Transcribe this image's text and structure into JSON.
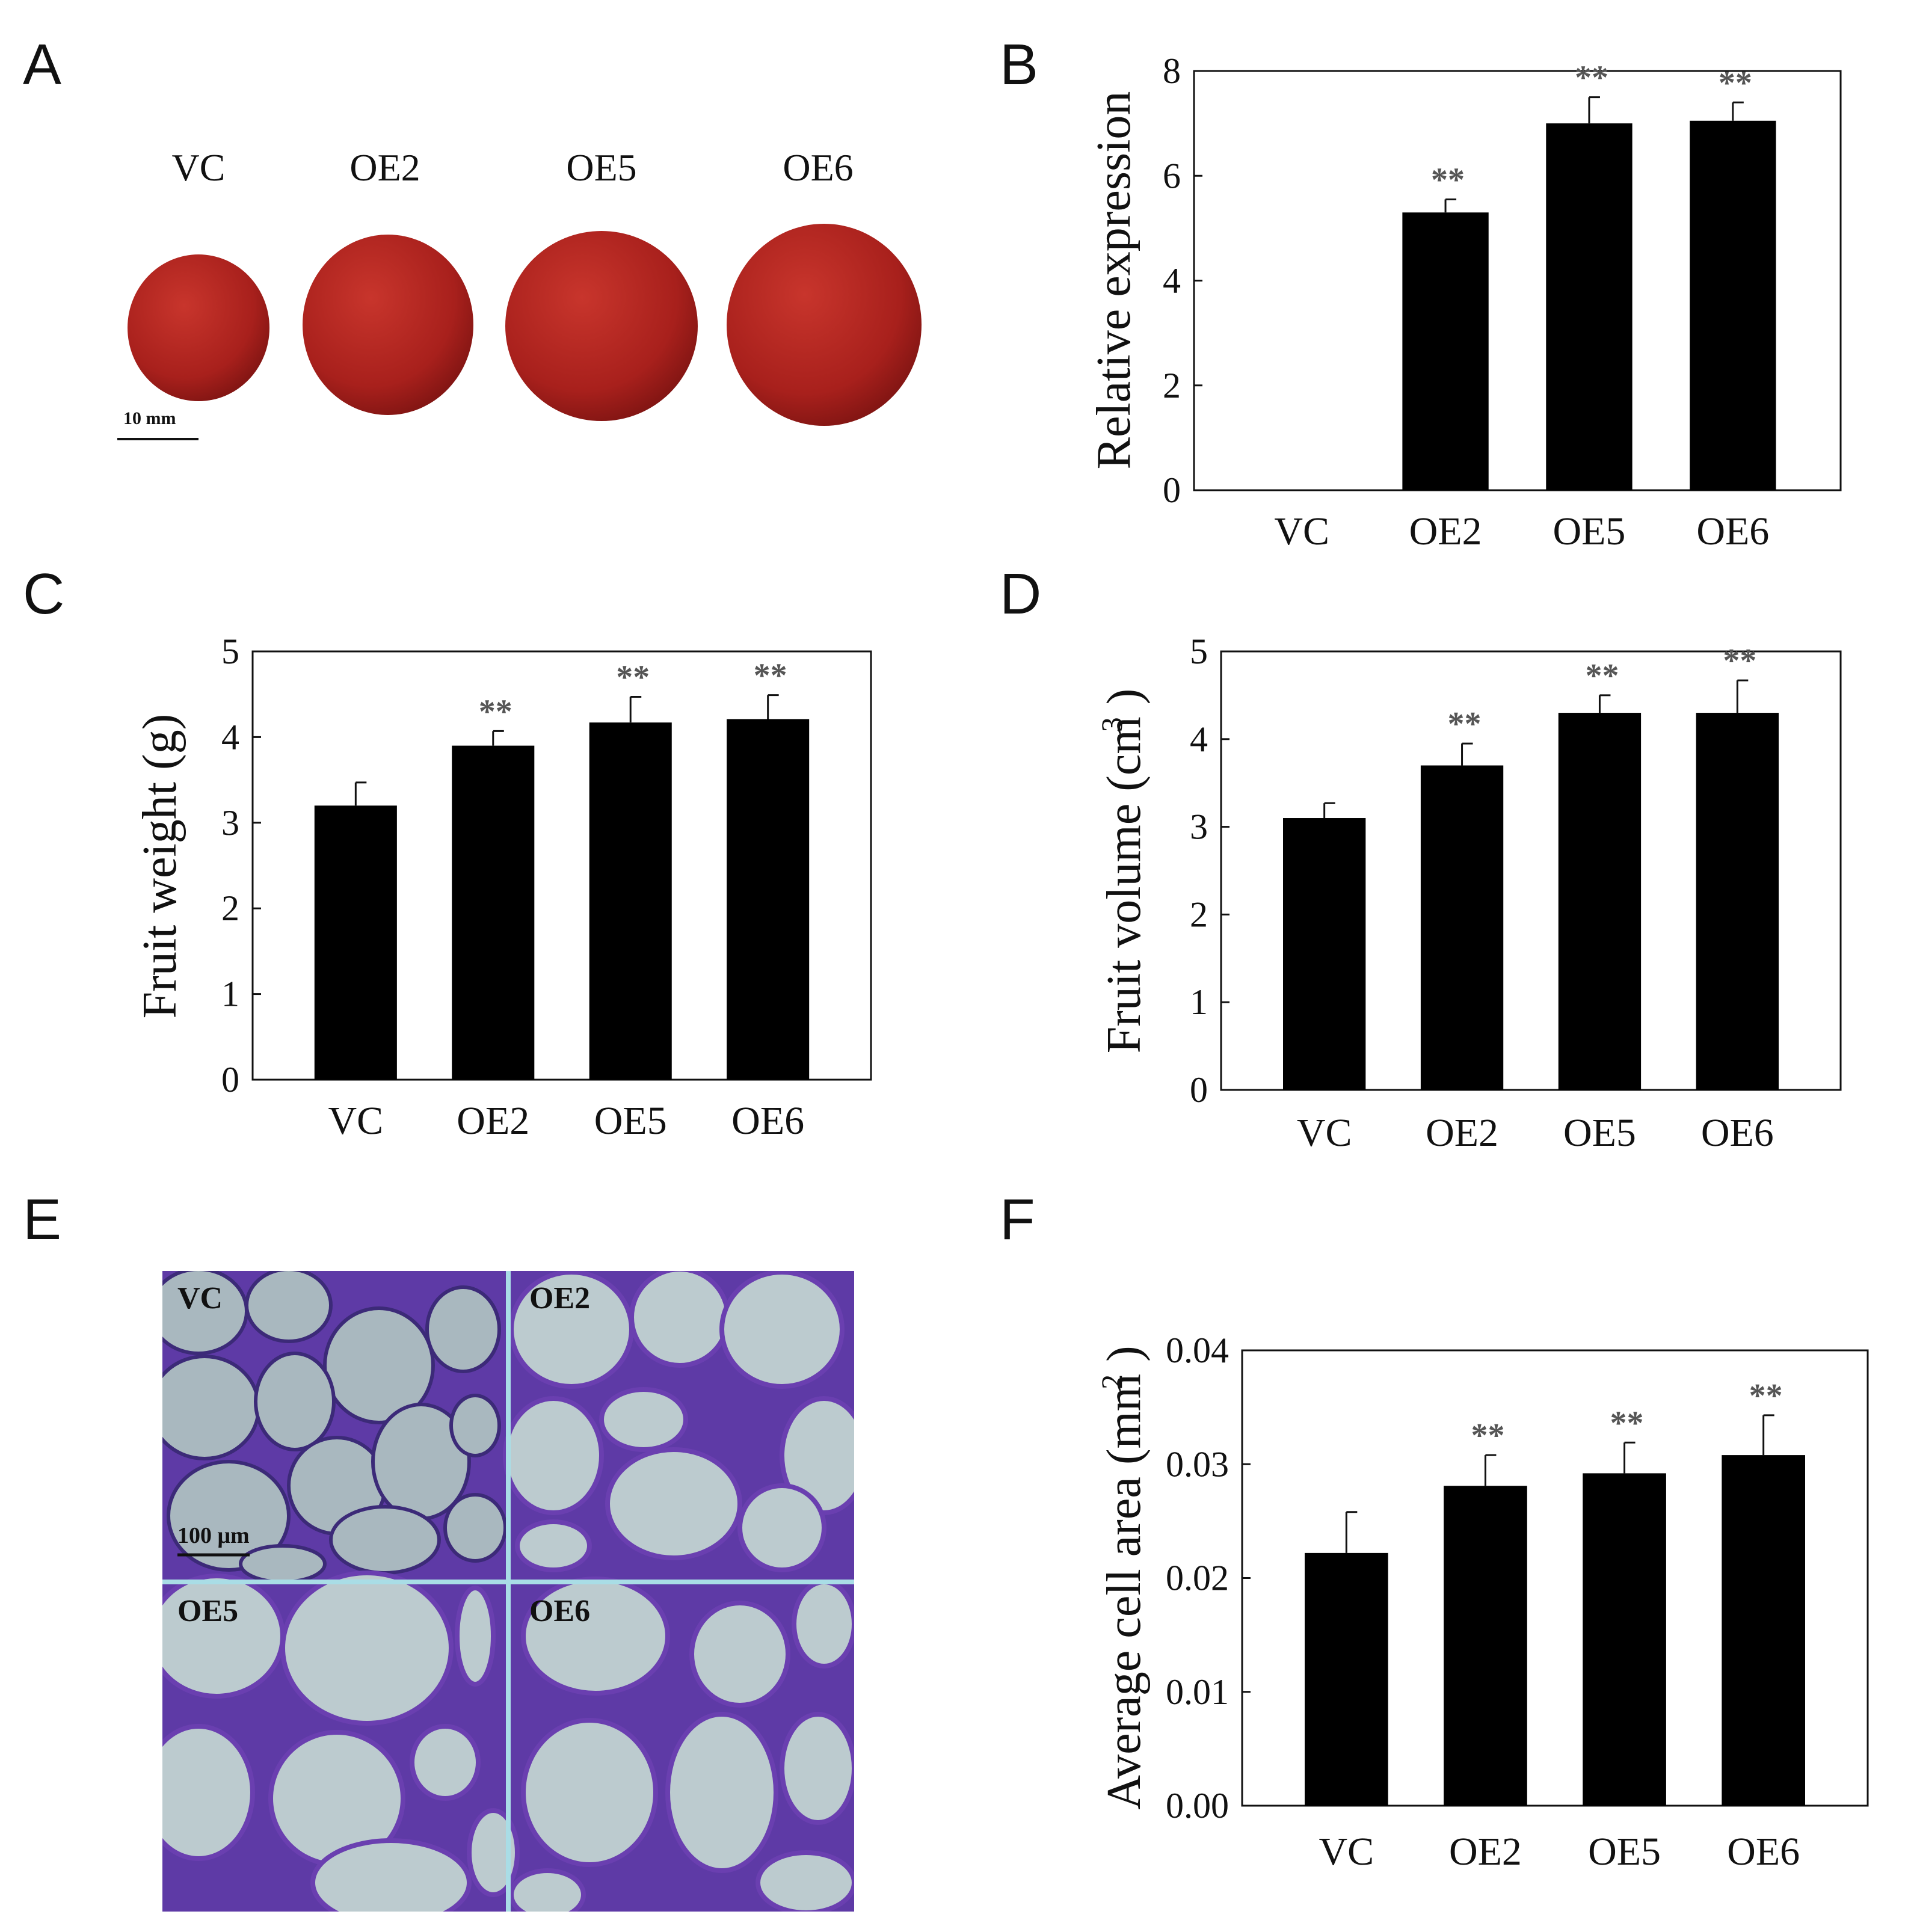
{
  "panel_letters": {
    "A": "A",
    "B": "B",
    "C": "C",
    "D": "D",
    "E": "E",
    "F": "F"
  },
  "fruit_photo": {
    "labels": [
      "VC",
      "OE2",
      "OE5",
      "OE6"
    ],
    "scale_bar": "10 mm",
    "fruit_color": "#a8201c"
  },
  "micrograph": {
    "labels": [
      "VC",
      "OE2",
      "OE5",
      "OE6"
    ],
    "scale_bar": "100 μm",
    "cell_color": "#b9c8cc",
    "wall_color": "#6a3fb0"
  },
  "chart_data": [
    {
      "panel": "B",
      "type": "bar",
      "categories": [
        "VC",
        "OE2",
        "OE5",
        "OE6"
      ],
      "values": [
        0,
        5.3,
        7.0,
        7.05
      ],
      "errors": [
        0,
        0.25,
        0.5,
        0.35
      ],
      "significance": [
        "",
        "**",
        "**",
        "**"
      ],
      "ylabel": "Relative expression",
      "ylabel_sup": "",
      "ylim": [
        0,
        8
      ],
      "yticks": [
        "0",
        "2",
        "4",
        "6",
        "8"
      ]
    },
    {
      "panel": "C",
      "type": "bar",
      "categories": [
        "VC",
        "OE2",
        "OE5",
        "OE6"
      ],
      "values": [
        3.2,
        3.9,
        4.17,
        4.21
      ],
      "errors": [
        0.27,
        0.17,
        0.3,
        0.28
      ],
      "significance": [
        "",
        "**",
        "**",
        "**"
      ],
      "ylabel": "Fruit weight (g)",
      "ylabel_sup": "",
      "ylim": [
        0,
        5
      ],
      "yticks": [
        "0",
        "1",
        "2",
        "3",
        "4",
        "5"
      ]
    },
    {
      "panel": "D",
      "type": "bar",
      "categories": [
        "VC",
        "OE2",
        "OE5",
        "OE6"
      ],
      "values": [
        3.1,
        3.7,
        4.3,
        4.3
      ],
      "errors": [
        0.17,
        0.25,
        0.2,
        0.37
      ],
      "significance": [
        "",
        "**",
        "**",
        "**"
      ],
      "ylabel": "Fruit volume (cm )",
      "ylabel_sup": "3",
      "ylim": [
        0,
        5
      ],
      "yticks": [
        "0",
        "1",
        "2",
        "3",
        "4",
        "5"
      ]
    },
    {
      "panel": "F",
      "type": "bar",
      "categories": [
        "VC",
        "OE2",
        "OE5",
        "OE6"
      ],
      "values": [
        0.0222,
        0.0281,
        0.0292,
        0.0308
      ],
      "errors": [
        0.0036,
        0.0027,
        0.0027,
        0.0035
      ],
      "significance": [
        "",
        "**",
        "**",
        "**"
      ],
      "ylabel": "Average cell area (mm )",
      "ylabel_sup": "2",
      "ylim": [
        0,
        0.04
      ],
      "yticks": [
        "0.00",
        "0.01",
        "0.02",
        "0.03",
        "0.04"
      ]
    }
  ]
}
